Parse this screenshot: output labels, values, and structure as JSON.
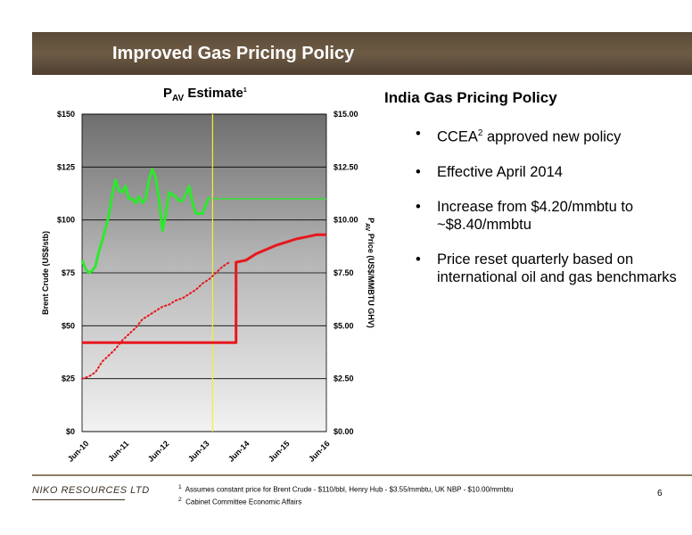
{
  "header": {
    "title": "Improved Gas Pricing Policy"
  },
  "chart_title": {
    "main": "P",
    "sub": "AV",
    "rest": " Estimate",
    "sup": "1"
  },
  "right_panel": {
    "title": "India Gas Pricing Policy",
    "bullet_glyph": "•",
    "bullets": [
      {
        "text_a": "CCEA",
        "sup": "2",
        "text_b": " approved new policy"
      },
      {
        "text_a": "Effective April 2014"
      },
      {
        "text_a": "Increase from $4.20/mmbtu to ~$8.40/mmbtu"
      },
      {
        "text_a": "Price reset quarterly based on international oil and gas benchmarks"
      }
    ]
  },
  "footer": {
    "company": "NIKO RESOURCES LTD",
    "footnote_1_mark": "1",
    "footnote_1": "Assumes constant price for Brent Crude - $110/bbl, Henry Hub - $3.55/mmbtu, UK NBP - $10.00/mmbtu",
    "footnote_2_mark": "2",
    "footnote_2": "Cabinet Committee Economic Affairs",
    "page_number": "6"
  },
  "chart_data": {
    "type": "line",
    "x_type": "date",
    "x_range": [
      "2010-06",
      "2016-07"
    ],
    "x_ticks": [
      {
        "date": "2010-06",
        "label": "Jun-10"
      },
      {
        "date": "2011-06",
        "label": "Jun-11"
      },
      {
        "date": "2012-06",
        "label": "Jun-12"
      },
      {
        "date": "2013-06",
        "label": "Jun-13"
      },
      {
        "date": "2014-06",
        "label": "Jun-14"
      },
      {
        "date": "2015-06",
        "label": "Jun-15"
      },
      {
        "date": "2016-06",
        "label": "Jun-16"
      }
    ],
    "y_left": {
      "label": "Brent Crude  (US$/stb)",
      "range": [
        0,
        150
      ],
      "ticks": [
        "$0",
        "$25",
        "$50",
        "$75",
        "$100",
        "$125",
        "$150"
      ]
    },
    "y_right": {
      "label_main": "P",
      "label_sub": "AV",
      "label_rest": " Price (US$/MMBTU GHV)",
      "range": [
        0,
        15
      ],
      "ticks": [
        "$0.00",
        "$2.50",
        "$5.00",
        "$7.50",
        "$10.00",
        "$12.50",
        "$15.00"
      ]
    },
    "grid": true,
    "vertical_marker": {
      "date": "2013-09",
      "color": "#f2ee36"
    },
    "series": [
      {
        "style": "solid",
        "axis": "left",
        "color": "#2ee82e",
        "points": [
          [
            "2010-06",
            81
          ],
          [
            "2010-07",
            77
          ],
          [
            "2010-08",
            75
          ],
          [
            "2010-09",
            76
          ],
          [
            "2010-10",
            78
          ],
          [
            "2010-11",
            85
          ],
          [
            "2010-12",
            90
          ],
          [
            "2011-01",
            96
          ],
          [
            "2011-02",
            102
          ],
          [
            "2011-03",
            112
          ],
          [
            "2011-04",
            119
          ],
          [
            "2011-05",
            114
          ],
          [
            "2011-06",
            113
          ],
          [
            "2011-07",
            116
          ],
          [
            "2011-08",
            110
          ],
          [
            "2011-09",
            110
          ],
          [
            "2011-10",
            108
          ],
          [
            "2011-11",
            111
          ],
          [
            "2011-12",
            108
          ],
          [
            "2012-01",
            110
          ],
          [
            "2012-02",
            119
          ],
          [
            "2012-03",
            124
          ],
          [
            "2012-04",
            120
          ],
          [
            "2012-05",
            110
          ],
          [
            "2012-06",
            95
          ],
          [
            "2012-07",
            102
          ],
          [
            "2012-08",
            113
          ],
          [
            "2012-09",
            112
          ],
          [
            "2012-10",
            111
          ],
          [
            "2012-11",
            109
          ],
          [
            "2012-12",
            109
          ],
          [
            "2013-01",
            112
          ],
          [
            "2013-02",
            116
          ],
          [
            "2013-03",
            108
          ],
          [
            "2013-04",
            103
          ],
          [
            "2013-05",
            103
          ],
          [
            "2013-06",
            103
          ],
          [
            "2013-07",
            107
          ],
          [
            "2013-08",
            111
          ]
        ]
      },
      {
        "style": "solid",
        "axis": "left",
        "color": "#2ee82e",
        "points": [
          [
            "2013-09",
            110
          ],
          [
            "2016-07",
            110
          ]
        ]
      },
      {
        "style": "solid",
        "axis": "right",
        "color": "#e8171c",
        "points": [
          [
            "2010-06",
            4.2
          ],
          [
            "2014-04",
            4.2
          ],
          [
            "2014-04",
            8.0
          ],
          [
            "2014-07",
            8.1
          ],
          [
            "2014-10",
            8.4
          ],
          [
            "2015-01",
            8.6
          ],
          [
            "2015-04",
            8.8
          ],
          [
            "2015-07",
            8.95
          ],
          [
            "2015-10",
            9.1
          ],
          [
            "2016-01",
            9.2
          ],
          [
            "2016-04",
            9.3
          ],
          [
            "2016-07",
            9.3
          ]
        ]
      },
      {
        "style": "dotted",
        "axis": "right",
        "color": "#e8171c",
        "points": [
          [
            "2010-06",
            2.5
          ],
          [
            "2010-08",
            2.6
          ],
          [
            "2010-10",
            2.8
          ],
          [
            "2010-12",
            3.3
          ],
          [
            "2011-02",
            3.6
          ],
          [
            "2011-04",
            3.9
          ],
          [
            "2011-06",
            4.3
          ],
          [
            "2011-08",
            4.6
          ],
          [
            "2011-10",
            4.9
          ],
          [
            "2011-12",
            5.3
          ],
          [
            "2012-02",
            5.5
          ],
          [
            "2012-04",
            5.7
          ],
          [
            "2012-06",
            5.9
          ],
          [
            "2012-08",
            6.0
          ],
          [
            "2012-10",
            6.2
          ],
          [
            "2012-12",
            6.3
          ],
          [
            "2013-02",
            6.5
          ],
          [
            "2013-04",
            6.7
          ],
          [
            "2013-06",
            7.0
          ],
          [
            "2013-08",
            7.2
          ],
          [
            "2013-10",
            7.5
          ],
          [
            "2013-12",
            7.8
          ],
          [
            "2014-02",
            8.0
          ]
        ]
      }
    ]
  }
}
